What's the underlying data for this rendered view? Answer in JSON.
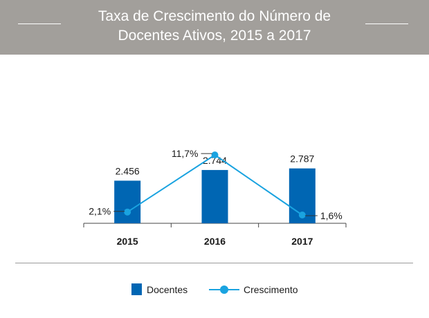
{
  "header": {
    "title_line1": "Taxa de Crescimento do Número de",
    "title_line2": "Docentes Ativos, 2015 a 2017"
  },
  "colors": {
    "header_bg": "#a29f9b",
    "bar": "#0066b3",
    "line": "#1aa3e0",
    "text": "#1a1a1a"
  },
  "chart_data": {
    "type": "bar",
    "categories": [
      "2015",
      "2016",
      "2017"
    ],
    "series": [
      {
        "name": "Docentes",
        "type": "bar",
        "values": [
          2456,
          2744,
          2787
        ],
        "labels": [
          "2.456",
          "2.744",
          "2.787"
        ]
      },
      {
        "name": "Crescimento",
        "type": "line",
        "values": [
          2.1,
          11.7,
          1.6
        ],
        "labels": [
          "2,1%",
          "11,7%",
          "1,6%"
        ]
      }
    ],
    "legend_position": "bottom",
    "grid": false
  },
  "legend": {
    "items": [
      {
        "label": "Docentes",
        "icon": "bar-swatch"
      },
      {
        "label": "Crescimento",
        "icon": "line-dot-swatch"
      }
    ]
  }
}
